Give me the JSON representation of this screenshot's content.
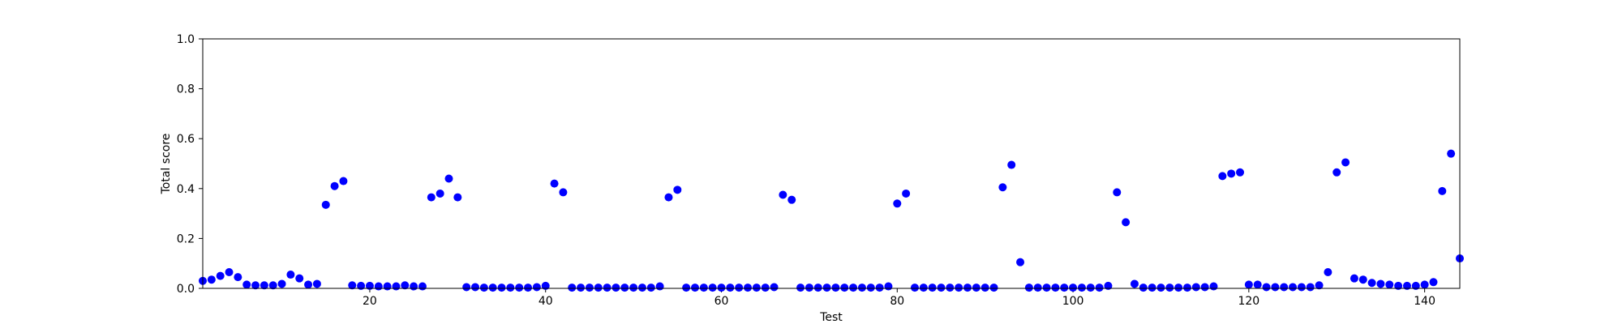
{
  "chart_data": {
    "type": "scatter",
    "title": "",
    "xlabel": "Test",
    "ylabel": "Total score",
    "xlim": [
      1,
      144
    ],
    "ylim": [
      0,
      1.0
    ],
    "grid": false,
    "xticks": [
      20,
      40,
      60,
      80,
      100,
      120,
      140
    ],
    "xtick_labels": [
      "20",
      "40",
      "60",
      "80",
      "100",
      "120",
      "140"
    ],
    "yticks": [
      0.0,
      0.2,
      0.4,
      0.6,
      0.8,
      1.0
    ],
    "ytick_labels": [
      "0.0",
      "0.2",
      "0.4",
      "0.6",
      "0.8",
      "1.0"
    ],
    "marker_color": "#0000ff",
    "series": [
      {
        "x": [
          1,
          2,
          3,
          4,
          5,
          6,
          7,
          8,
          9,
          10,
          11,
          12,
          13,
          14,
          15,
          16,
          17,
          18,
          19,
          20,
          21,
          22,
          23,
          24,
          25,
          26,
          27,
          28,
          29,
          30,
          31,
          32,
          33,
          34,
          35,
          36,
          37,
          38,
          39,
          40,
          41,
          42,
          43,
          44,
          45,
          46,
          47,
          48,
          49,
          50,
          51,
          52,
          53,
          54,
          55,
          56,
          57,
          58,
          59,
          60,
          61,
          62,
          63,
          64,
          65,
          66,
          67,
          68,
          69,
          70,
          71,
          72,
          73,
          74,
          75,
          76,
          77,
          78,
          79,
          80,
          81,
          82,
          83,
          84,
          85,
          86,
          87,
          88,
          89,
          90,
          91,
          92,
          93,
          94,
          95,
          96,
          97,
          98,
          99,
          100,
          101,
          102,
          103,
          104,
          105,
          106,
          107,
          108,
          109,
          110,
          111,
          112,
          113,
          114,
          115,
          116,
          117,
          118,
          119,
          120,
          121,
          122,
          123,
          124,
          125,
          126,
          127,
          128,
          129,
          130,
          131,
          132,
          133,
          134,
          135,
          136,
          137,
          138,
          139,
          140,
          141,
          142,
          143,
          144
        ],
        "y": [
          0.03,
          0.035,
          0.05,
          0.065,
          0.045,
          0.015,
          0.012,
          0.012,
          0.012,
          0.018,
          0.055,
          0.04,
          0.015,
          0.018,
          0.335,
          0.41,
          0.43,
          0.012,
          0.01,
          0.01,
          0.008,
          0.008,
          0.008,
          0.012,
          0.008,
          0.008,
          0.365,
          0.38,
          0.44,
          0.365,
          0.005,
          0.005,
          0.003,
          0.003,
          0.003,
          0.003,
          0.003,
          0.003,
          0.005,
          0.01,
          0.42,
          0.385,
          0.003,
          0.003,
          0.003,
          0.003,
          0.003,
          0.003,
          0.003,
          0.003,
          0.003,
          0.003,
          0.008,
          0.365,
          0.395,
          0.003,
          0.003,
          0.003,
          0.003,
          0.003,
          0.003,
          0.003,
          0.003,
          0.003,
          0.003,
          0.005,
          0.375,
          0.355,
          0.003,
          0.003,
          0.003,
          0.003,
          0.003,
          0.003,
          0.003,
          0.003,
          0.003,
          0.003,
          0.008,
          0.34,
          0.38,
          0.003,
          0.003,
          0.003,
          0.003,
          0.003,
          0.003,
          0.003,
          0.003,
          0.003,
          0.003,
          0.405,
          0.495,
          0.105,
          0.003,
          0.003,
          0.003,
          0.003,
          0.003,
          0.003,
          0.003,
          0.003,
          0.003,
          0.01,
          0.385,
          0.265,
          0.018,
          0.003,
          0.003,
          0.003,
          0.003,
          0.003,
          0.003,
          0.005,
          0.005,
          0.008,
          0.45,
          0.46,
          0.465,
          0.015,
          0.015,
          0.005,
          0.005,
          0.005,
          0.005,
          0.005,
          0.005,
          0.012,
          0.065,
          0.465,
          0.505,
          0.04,
          0.035,
          0.022,
          0.018,
          0.015,
          0.01,
          0.01,
          0.01,
          0.015,
          0.025,
          0.39,
          0.54,
          0.12
        ]
      }
    ]
  }
}
